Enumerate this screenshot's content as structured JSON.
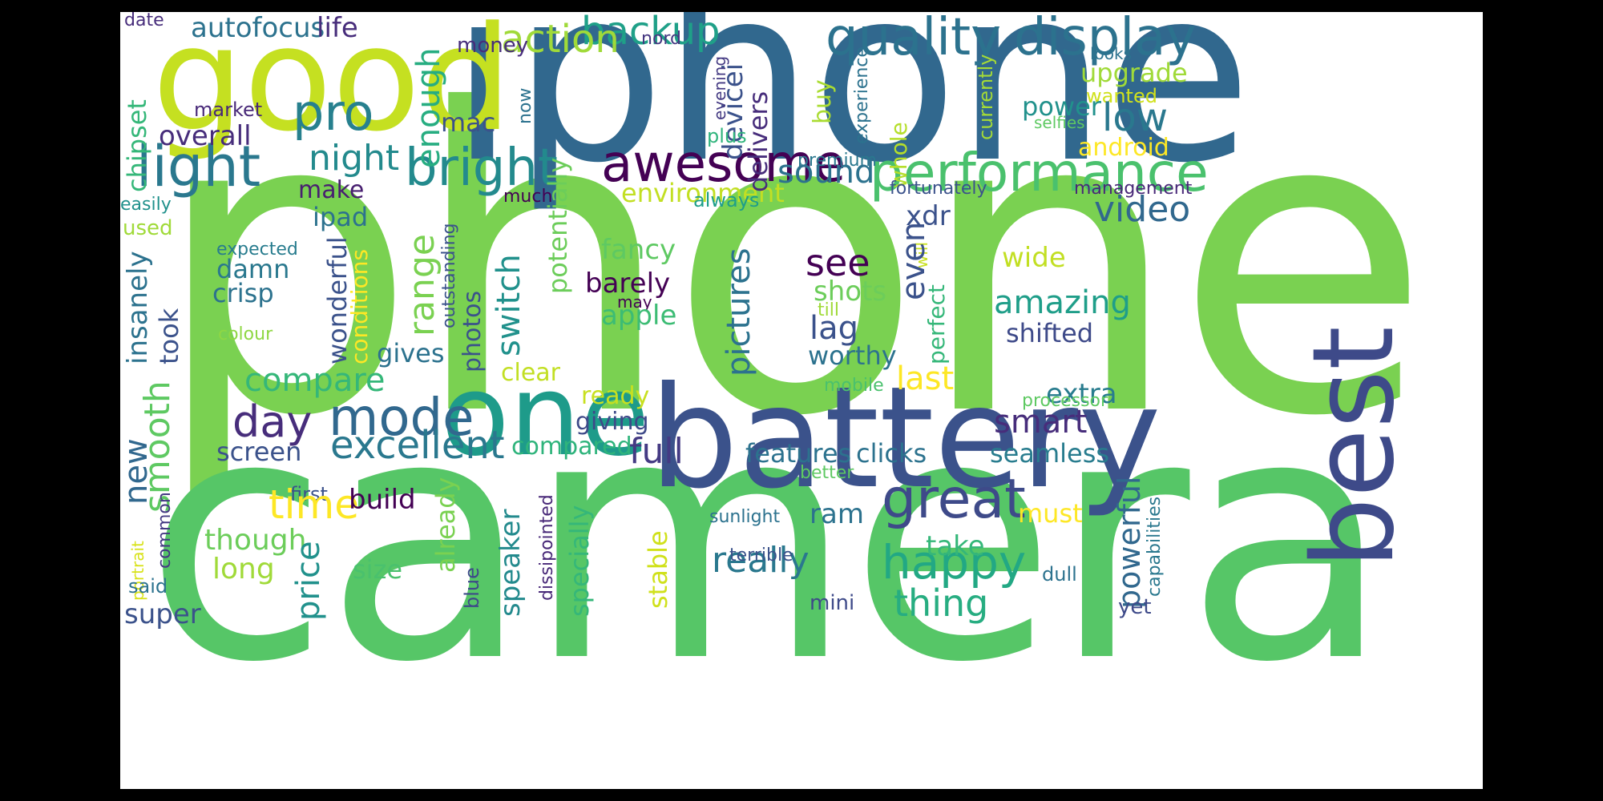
{
  "words": {
    "phone": {
      "text": "phone",
      "color": "#7AD151"
    },
    "camera": {
      "text": "camera",
      "color": "#56C667"
    },
    "iphone": {
      "text": "iphone",
      "color": "#31688E"
    },
    "good": {
      "text": "good",
      "color": "#C5E021"
    },
    "battery": {
      "text": "battery",
      "color": "#3B528B"
    },
    "one": {
      "text": "one",
      "color": "#1E9B8A"
    },
    "best": {
      "text": "best",
      "color": "#3E4A89"
    },
    "quality": {
      "text": "quality",
      "color": "#2C728E"
    },
    "display": {
      "text": "display",
      "color": "#2C728E"
    },
    "performance": {
      "text": "performance",
      "color": "#4AC16D"
    },
    "awesome": {
      "text": "awesome",
      "color": "#440154"
    },
    "light": {
      "text": "light",
      "color": "#2A788E"
    },
    "pro": {
      "text": "pro",
      "color": "#27808E"
    },
    "bright": {
      "text": "bright",
      "color": "#238A8D"
    },
    "great": {
      "text": "great",
      "color": "#3E4A89"
    },
    "happy": {
      "text": "happy",
      "color": "#22A884"
    },
    "mode": {
      "text": "mode",
      "color": "#31688E"
    },
    "excellent": {
      "text": "excellent",
      "color": "#2A788E"
    },
    "day": {
      "text": "day",
      "color": "#472D7B"
    },
    "backup": {
      "text": "backup",
      "color": "#1FA088"
    },
    "action": {
      "text": "action",
      "color": "#A0DA39"
    },
    "autofocus": {
      "text": "autofocus",
      "color": "#2C728E"
    },
    "life": {
      "text": "life",
      "color": "#472D7B"
    },
    "date": {
      "text": "date",
      "color": "#472D7B"
    },
    "chipset": {
      "text": "chipset",
      "color": "#35B779"
    },
    "market": {
      "text": "market",
      "color": "#482878"
    },
    "overall": {
      "text": "overall",
      "color": "#472D7B"
    },
    "night": {
      "text": "night",
      "color": "#238A8D"
    },
    "enough": {
      "text": "enough",
      "color": "#27AD81"
    },
    "mac": {
      "text": "mac",
      "color": "#3B528B"
    },
    "money": {
      "text": "money",
      "color": "#472D7B"
    },
    "nord": {
      "text": "nord",
      "color": "#453781"
    },
    "now": {
      "text": "now",
      "color": "#2C728E"
    },
    "potentially": {
      "text": "potentially",
      "color": "#6CCD5A"
    },
    "devicei": {
      "text": "devicei",
      "color": "#3B528B"
    },
    "delivers": {
      "text": "delivers",
      "color": "#472D7B"
    },
    "evening": {
      "text": "evening",
      "color": "#443A83"
    },
    "plus": {
      "text": "plus",
      "color": "#2FB47C"
    },
    "buy": {
      "text": "buy",
      "color": "#AADC32"
    },
    "experience": {
      "text": "experience",
      "color": "#2C728E"
    },
    "whole": {
      "text": "whole",
      "color": "#B5DE2B"
    },
    "premium": {
      "text": "premium",
      "color": "#2A788E"
    },
    "fortunately": {
      "text": "fortunately",
      "color": "#3B528B"
    },
    "currently": {
      "text": "currently",
      "color": "#A5DB36"
    },
    "upgrade": {
      "text": "upgrade",
      "color": "#A0DA39"
    },
    "wanted": {
      "text": "wanted",
      "color": "#D0E11C"
    },
    "looks": {
      "text": "looks",
      "color": "#2C728E"
    },
    "power": {
      "text": "power",
      "color": "#21918C"
    },
    "selfies": {
      "text": "selfies",
      "color": "#5EC962"
    },
    "low": {
      "text": "low",
      "color": "#2A788E"
    },
    "android": {
      "text": "android",
      "color": "#FDE725"
    },
    "management": {
      "text": "management",
      "color": "#482878"
    },
    "environment": {
      "text": "environment",
      "color": "#C2DF23"
    },
    "sound": {
      "text": "sound",
      "color": "#2C728E"
    },
    "always": {
      "text": "always",
      "color": "#1F9E89"
    },
    "much": {
      "text": "much",
      "color": "#440154"
    },
    "easily": {
      "text": "easily",
      "color": "#21918C"
    },
    "used": {
      "text": "used",
      "color": "#A0DA39"
    },
    "make": {
      "text": "make",
      "color": "#481F70"
    },
    "ipad": {
      "text": "ipad",
      "color": "#2C728E"
    },
    "xdr": {
      "text": "xdr",
      "color": "#3B528B"
    },
    "video": {
      "text": "video",
      "color": "#31688E"
    },
    "expected": {
      "text": "expected",
      "color": "#287C8E"
    },
    "outstanding": {
      "text": "outstanding",
      "color": "#3B528B"
    },
    "will": {
      "text": "will",
      "color": "#C8E020"
    },
    "fancy": {
      "text": "fancy",
      "color": "#5EC962"
    },
    "see": {
      "text": "see",
      "color": "#440154"
    },
    "wide": {
      "text": "wide",
      "color": "#C2DF23"
    },
    "damn": {
      "text": "damn",
      "color": "#2A788E"
    },
    "crisp": {
      "text": "crisp",
      "color": "#2C728E"
    },
    "barely": {
      "text": "barely",
      "color": "#440154"
    },
    "may": {
      "text": "may",
      "color": "#440154"
    },
    "apple": {
      "text": "apple",
      "color": "#3CBC74"
    },
    "shots": {
      "text": "shots",
      "color": "#6CCD5A"
    },
    "amazing": {
      "text": "amazing",
      "color": "#1F9E89"
    },
    "shifted": {
      "text": "shifted",
      "color": "#3E4A89"
    },
    "lag": {
      "text": "lag",
      "color": "#3B528B"
    },
    "till": {
      "text": "till",
      "color": "#A0DA39"
    },
    "colour": {
      "text": "colour",
      "color": "#8FD744"
    },
    "range": {
      "text": "range",
      "color": "#7AD151"
    },
    "switch": {
      "text": "switch",
      "color": "#21918C"
    },
    "photos": {
      "text": "photos",
      "color": "#3B528B"
    },
    "pictures": {
      "text": "pictures",
      "color": "#2C728E"
    },
    "even": {
      "text": "even",
      "color": "#3B528B"
    },
    "perfect": {
      "text": "perfect",
      "color": "#35B779"
    },
    "insanely": {
      "text": "insanely",
      "color": "#2C728E"
    },
    "took": {
      "text": "took",
      "color": "#3B528B"
    },
    "wonderful": {
      "text": "wonderful",
      "color": "#3B528B"
    },
    "conditions": {
      "text": "conditions",
      "color": "#FDE725"
    },
    "gives": {
      "text": "gives",
      "color": "#2C728E"
    },
    "worthy": {
      "text": "worthy",
      "color": "#2C728E"
    },
    "compare": {
      "text": "compare",
      "color": "#35B779"
    },
    "clear": {
      "text": "clear",
      "color": "#C2DF23"
    },
    "ready": {
      "text": "ready",
      "color": "#C8E020"
    },
    "last": {
      "text": "last",
      "color": "#FDE725"
    },
    "mobile": {
      "text": "mobile",
      "color": "#4AC16D"
    },
    "extra": {
      "text": "extra",
      "color": "#287C8E"
    },
    "processor": {
      "text": "processor",
      "color": "#5EC962"
    },
    "smart": {
      "text": "smart",
      "color": "#472D7B"
    },
    "giving": {
      "text": "giving",
      "color": "#3E4A89"
    },
    "compared": {
      "text": "compared",
      "color": "#2FB47C"
    },
    "full": {
      "text": "full",
      "color": "#443A83"
    },
    "features": {
      "text": "features",
      "color": "#2C728E"
    },
    "clicks": {
      "text": "clicks",
      "color": "#2C728E"
    },
    "seamless": {
      "text": "seamless",
      "color": "#287C8E"
    },
    "new": {
      "text": "new",
      "color": "#31688E"
    },
    "smooth": {
      "text": "smooth",
      "color": "#5EC962"
    },
    "screen": {
      "text": "screen",
      "color": "#3B528B"
    },
    "common": {
      "text": "common",
      "color": "#443A83"
    },
    "portrait": {
      "text": "portrait",
      "color": "#D8E219"
    },
    "first": {
      "text": "first",
      "color": "#3B528B"
    },
    "time": {
      "text": "time",
      "color": "#FDE725"
    },
    "build": {
      "text": "build",
      "color": "#440154"
    },
    "though": {
      "text": "though",
      "color": "#6CCD5A"
    },
    "long": {
      "text": "long",
      "color": "#A0DA39"
    },
    "said": {
      "text": "said",
      "color": "#2C728E"
    },
    "super": {
      "text": "super",
      "color": "#3B528B"
    },
    "price": {
      "text": "price",
      "color": "#21918C"
    },
    "size": {
      "text": "size",
      "color": "#4AC16D"
    },
    "already": {
      "text": "already",
      "color": "#7AD151"
    },
    "blue": {
      "text": "blue",
      "color": "#3E4A89"
    },
    "dissipointed": {
      "text": "dissipointed",
      "color": "#482878"
    },
    "speaker": {
      "text": "speaker",
      "color": "#238A8D"
    },
    "specially": {
      "text": "specially",
      "color": "#35B779"
    },
    "stable": {
      "text": "stable",
      "color": "#D0E11C"
    },
    "ram": {
      "text": "ram",
      "color": "#2C728E"
    },
    "really": {
      "text": "really",
      "color": "#2A788E"
    },
    "sunlight": {
      "text": "sunlight",
      "color": "#2C728E"
    },
    "terrible": {
      "text": "terrible",
      "color": "#3B528B"
    },
    "mini": {
      "text": "mini",
      "color": "#3E4A89"
    },
    "better": {
      "text": "better",
      "color": "#5EC962"
    },
    "must": {
      "text": "must",
      "color": "#FDE725"
    },
    "take": {
      "text": "take",
      "color": "#35B779"
    },
    "thing": {
      "text": "thing",
      "color": "#27AD81"
    },
    "powerful": {
      "text": "powerful",
      "color": "#31688E"
    },
    "capabilities": {
      "text": "capabilities",
      "color": "#2A788E"
    },
    "dull": {
      "text": "dull",
      "color": "#2C728E"
    },
    "yet": {
      "text": "yet",
      "color": "#3E4A89"
    }
  }
}
